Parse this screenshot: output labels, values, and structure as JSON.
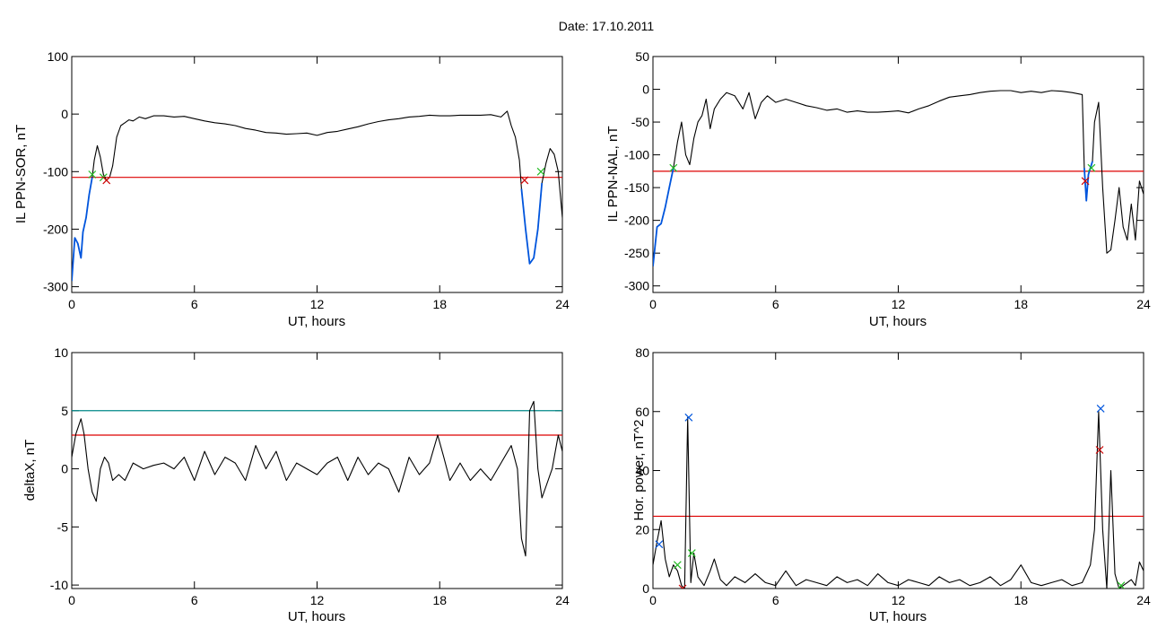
{
  "figure": {
    "title": "Date:  17.10.2011"
  },
  "chart_data": [
    {
      "id": "sor",
      "type": "line",
      "title": "",
      "xlabel": "UT, hours",
      "ylabel": "IL PPN-SOR, nT",
      "xlim": [
        0,
        24
      ],
      "ylim": [
        -310,
        100
      ],
      "xticks": [
        0,
        6,
        12,
        18,
        24
      ],
      "yticks": [
        -300,
        -200,
        -100,
        0,
        100
      ],
      "grid": false,
      "thresholds": [
        {
          "value": -110,
          "color": "#dd0000"
        }
      ],
      "series": [
        {
          "color": "#000000",
          "x": [
            0,
            0.15,
            0.3,
            0.45,
            0.55,
            0.7,
            0.85,
            1.0,
            1.1,
            1.25,
            1.4,
            1.55,
            1.7,
            1.85,
            2.0,
            2.2,
            2.4,
            2.6,
            2.8,
            3.0,
            3.3,
            3.6,
            4.0,
            4.5,
            5.0,
            5.5,
            6.0,
            6.5,
            7.0,
            7.5,
            8.0,
            8.5,
            9.0,
            9.5,
            10.0,
            10.5,
            11.0,
            11.5,
            12.0,
            12.5,
            13.0,
            13.5,
            14.0,
            14.5,
            15.0,
            15.5,
            16.0,
            16.5,
            17.0,
            17.5,
            18.0,
            18.5,
            19.0,
            19.5,
            20.0,
            20.5,
            21.0,
            21.3,
            21.5,
            21.7,
            21.9,
            22.0,
            22.2,
            22.4,
            22.6,
            22.8,
            23.0,
            23.2,
            23.4,
            23.6,
            23.8,
            24.0
          ],
          "y": [
            -290,
            -215,
            -225,
            -250,
            -205,
            -180,
            -140,
            -110,
            -80,
            -55,
            -75,
            -105,
            -115,
            -110,
            -90,
            -40,
            -20,
            -15,
            -10,
            -12,
            -5,
            -8,
            -3,
            -3,
            -5,
            -4,
            -8,
            -12,
            -15,
            -17,
            -20,
            -25,
            -28,
            -32,
            -33,
            -35,
            -34,
            -33,
            -37,
            -32,
            -30,
            -26,
            -22,
            -17,
            -13,
            -10,
            -8,
            -5,
            -4,
            -2,
            -3,
            -3,
            -2,
            -2,
            -2,
            -1,
            -5,
            5,
            -20,
            -40,
            -80,
            -130,
            -200,
            -260,
            -250,
            -200,
            -120,
            -85,
            -60,
            -70,
            -100,
            -180
          ]
        },
        {
          "color": "#0055dd",
          "x": [
            0,
            0.15,
            0.3,
            0.45,
            0.55,
            0.7,
            0.85,
            1.0
          ],
          "y": [
            -290,
            -215,
            -225,
            -250,
            -205,
            -180,
            -140,
            -110
          ]
        },
        {
          "color": "#0055dd",
          "x": [
            22.0,
            22.2,
            22.4,
            22.6,
            22.8,
            23.0
          ],
          "y": [
            -130,
            -200,
            -260,
            -250,
            -200,
            -120
          ]
        }
      ],
      "markers": [
        {
          "x": 1.0,
          "y": -105,
          "color": "#22bb22"
        },
        {
          "x": 1.55,
          "y": -110,
          "color": "#22bb22"
        },
        {
          "x": 1.7,
          "y": -115,
          "color": "#cc0000"
        },
        {
          "x": 22.15,
          "y": -115,
          "color": "#cc0000"
        },
        {
          "x": 22.95,
          "y": -100,
          "color": "#22bb22"
        }
      ]
    },
    {
      "id": "nal",
      "type": "line",
      "title": "",
      "xlabel": "UT, hours",
      "ylabel": "IL PPN-NAL, nT",
      "xlim": [
        0,
        24
      ],
      "ylim": [
        -310,
        50
      ],
      "xticks": [
        0,
        6,
        12,
        18,
        24
      ],
      "yticks": [
        -300,
        -250,
        -200,
        -150,
        -100,
        -50,
        0,
        50
      ],
      "grid": false,
      "thresholds": [
        {
          "value": -125,
          "color": "#dd0000"
        }
      ],
      "series": [
        {
          "color": "#000000",
          "x": [
            0,
            0.2,
            0.4,
            0.6,
            0.8,
            1.0,
            1.2,
            1.4,
            1.6,
            1.8,
            2.0,
            2.2,
            2.4,
            2.6,
            2.8,
            3.0,
            3.3,
            3.6,
            4.0,
            4.4,
            4.7,
            5.0,
            5.3,
            5.6,
            6.0,
            6.5,
            7.0,
            7.5,
            8.0,
            8.5,
            9.0,
            9.5,
            10.0,
            10.5,
            11.0,
            11.5,
            12.0,
            12.5,
            13.0,
            13.5,
            14.0,
            14.5,
            15.0,
            15.5,
            16.0,
            16.5,
            17.0,
            17.5,
            18.0,
            18.5,
            19.0,
            19.5,
            20.0,
            20.5,
            21.0,
            21.1,
            21.2,
            21.3,
            21.4,
            21.5,
            21.6,
            21.8,
            22.0,
            22.2,
            22.4,
            22.6,
            22.8,
            23.0,
            23.2,
            23.4,
            23.6,
            23.8,
            24.0
          ],
          "y": [
            -270,
            -210,
            -205,
            -180,
            -150,
            -120,
            -80,
            -50,
            -100,
            -115,
            -75,
            -50,
            -40,
            -15,
            -60,
            -30,
            -15,
            -5,
            -10,
            -30,
            -5,
            -45,
            -20,
            -10,
            -20,
            -15,
            -20,
            -25,
            -28,
            -32,
            -30,
            -35,
            -33,
            -35,
            -35,
            -34,
            -33,
            -36,
            -30,
            -25,
            -18,
            -12,
            -10,
            -8,
            -5,
            -3,
            -2,
            -2,
            -5,
            -3,
            -5,
            -2,
            -3,
            -5,
            -8,
            -120,
            -170,
            -130,
            -120,
            -110,
            -50,
            -20,
            -150,
            -250,
            -245,
            -200,
            -150,
            -210,
            -230,
            -175,
            -230,
            -140,
            -160
          ]
        },
        {
          "color": "#0055dd",
          "x": [
            0,
            0.2,
            0.4,
            0.6,
            0.8,
            1.0
          ],
          "y": [
            -270,
            -210,
            -205,
            -180,
            -150,
            -120
          ]
        },
        {
          "color": "#0055dd",
          "x": [
            21.1,
            21.2,
            21.3,
            21.4,
            21.5
          ],
          "y": [
            -120,
            -170,
            -130,
            -120,
            -110
          ]
        }
      ],
      "markers": [
        {
          "x": 1.0,
          "y": -120,
          "color": "#22bb22"
        },
        {
          "x": 21.15,
          "y": -140,
          "color": "#cc0000"
        },
        {
          "x": 21.45,
          "y": -120,
          "color": "#22bb22"
        }
      ]
    },
    {
      "id": "deltax",
      "type": "line",
      "title": "",
      "xlabel": "UT, hours",
      "ylabel": "deltaX, nT",
      "xlim": [
        0,
        24
      ],
      "ylim": [
        -10.3,
        10
      ],
      "xticks": [
        0,
        6,
        12,
        18,
        24
      ],
      "yticks": [
        -10,
        -5,
        0,
        5,
        10
      ],
      "grid": false,
      "thresholds": [
        {
          "value": 5,
          "color": "#008888"
        },
        {
          "value": 2.9,
          "color": "#dd0000"
        }
      ],
      "series": [
        {
          "color": "#000000",
          "x": [
            0,
            0.2,
            0.45,
            0.6,
            0.8,
            1.0,
            1.2,
            1.4,
            1.6,
            1.8,
            2.0,
            2.3,
            2.6,
            3.0,
            3.5,
            4.0,
            4.5,
            5.0,
            5.5,
            6.0,
            6.5,
            7.0,
            7.5,
            8.0,
            8.5,
            9.0,
            9.5,
            10.0,
            10.5,
            11.0,
            11.5,
            12.0,
            12.5,
            13.0,
            13.5,
            14.0,
            14.5,
            15.0,
            15.5,
            16.0,
            16.5,
            17.0,
            17.5,
            17.9,
            18.2,
            18.5,
            19.0,
            19.5,
            20.0,
            20.5,
            21.0,
            21.5,
            21.8,
            22.0,
            22.2,
            22.4,
            22.6,
            22.8,
            23.0,
            23.2,
            23.5,
            23.8,
            24.0
          ],
          "y": [
            1,
            3,
            4.3,
            3,
            0,
            -2,
            -2.8,
            0,
            1,
            0.5,
            -1,
            -0.5,
            -1,
            0.5,
            0,
            0.3,
            0.5,
            0,
            1,
            -1,
            1.5,
            -0.5,
            1,
            0.5,
            -1,
            2,
            0,
            1.5,
            -1,
            0.5,
            0,
            -0.5,
            0.5,
            1,
            -1,
            1,
            -0.5,
            0.5,
            0,
            -2,
            1,
            -0.5,
            0.5,
            2.9,
            1,
            -1,
            0.5,
            -1,
            0,
            -1,
            0.5,
            2,
            0,
            -6,
            -7.5,
            5,
            5.8,
            0,
            -2.5,
            -1.5,
            0,
            2.9,
            1.5
          ]
        }
      ],
      "markers": []
    },
    {
      "id": "power",
      "type": "line",
      "title": "",
      "xlabel": "UT, hours",
      "ylabel": "Hor. power, nT^2",
      "xlim": [
        0,
        24
      ],
      "ylim": [
        0,
        80
      ],
      "xticks": [
        0,
        6,
        12,
        18,
        24
      ],
      "yticks": [
        0,
        20,
        40,
        60,
        80
      ],
      "grid": false,
      "thresholds": [
        {
          "value": 24.5,
          "color": "#dd0000"
        }
      ],
      "series": [
        {
          "color": "#000000",
          "x": [
            0,
            0.2,
            0.4,
            0.6,
            0.8,
            1.0,
            1.2,
            1.4,
            1.55,
            1.7,
            1.85,
            2.0,
            2.2,
            2.5,
            2.8,
            3.0,
            3.3,
            3.6,
            4.0,
            4.5,
            5.0,
            5.5,
            6.0,
            6.5,
            7.0,
            7.5,
            8.0,
            8.5,
            9.0,
            9.5,
            10.0,
            10.5,
            11.0,
            11.5,
            12.0,
            12.5,
            13.0,
            13.5,
            14.0,
            14.5,
            15.0,
            15.5,
            16.0,
            16.5,
            17.0,
            17.5,
            18.0,
            18.5,
            19.0,
            19.5,
            20.0,
            20.5,
            21.0,
            21.2,
            21.4,
            21.6,
            21.8,
            22.0,
            22.2,
            22.4,
            22.6,
            22.8,
            23.0,
            23.2,
            23.4,
            23.6,
            23.8,
            24.0
          ],
          "y": [
            8,
            16,
            23,
            10,
            4,
            8,
            6,
            1,
            0,
            58,
            2,
            12,
            4,
            1,
            6,
            10,
            3,
            1,
            4,
            2,
            5,
            2,
            1,
            6,
            1,
            3,
            2,
            1,
            4,
            2,
            3,
            1,
            5,
            2,
            1,
            3,
            2,
            1,
            4,
            2,
            3,
            1,
            2,
            4,
            1,
            3,
            8,
            2,
            1,
            2,
            3,
            1,
            2,
            5,
            8,
            20,
            60,
            20,
            0,
            40,
            5,
            0,
            1,
            2,
            3,
            1,
            9,
            6
          ]
        }
      ],
      "markers": [
        {
          "x": 0.3,
          "y": 15,
          "color": "#0055dd"
        },
        {
          "x": 1.2,
          "y": 8,
          "color": "#22bb22"
        },
        {
          "x": 1.45,
          "y": 0,
          "color": "#cc0000"
        },
        {
          "x": 1.75,
          "y": 58,
          "color": "#0055dd"
        },
        {
          "x": 1.9,
          "y": 12,
          "color": "#22bb22"
        },
        {
          "x": 21.9,
          "y": 61,
          "color": "#0055dd"
        },
        {
          "x": 21.85,
          "y": 47,
          "color": "#cc0000"
        },
        {
          "x": 22.9,
          "y": 1,
          "color": "#22bb22"
        }
      ]
    }
  ]
}
